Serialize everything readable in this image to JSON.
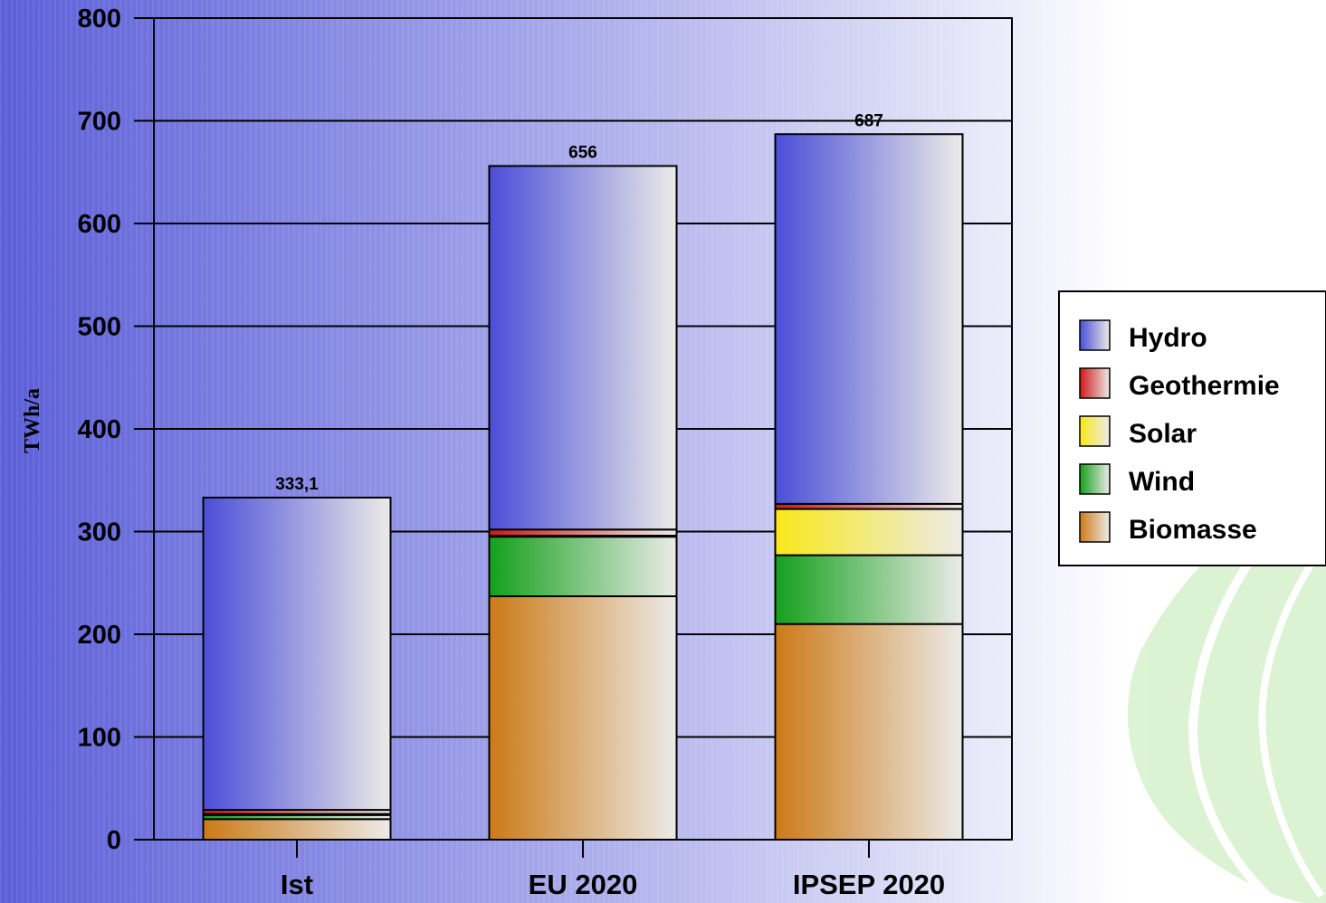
{
  "chart_data": {
    "type": "bar",
    "stacked": true,
    "categories": [
      "Ist",
      "EU 2020",
      "IPSEP 2020"
    ],
    "series": [
      {
        "name": "Biomasse",
        "values": [
          20,
          237,
          210
        ],
        "color": "#cc7a18"
      },
      {
        "name": "Wind",
        "values": [
          4,
          58,
          67
        ],
        "color": "#14a01c"
      },
      {
        "name": "Solar",
        "values": [
          1,
          1,
          45
        ],
        "color": "#f8e81a"
      },
      {
        "name": "Geothermie",
        "values": [
          4,
          6,
          5
        ],
        "color": "#d01818"
      },
      {
        "name": "Hydro",
        "values": [
          304.1,
          354,
          360
        ],
        "color": "#4a4ed8"
      }
    ],
    "totals": [
      "333,1",
      "656",
      "687"
    ],
    "ylabel": "TWh/a",
    "ylim": [
      0,
      800
    ],
    "yticks": [
      "0",
      "100",
      "200",
      "300",
      "400",
      "500",
      "600",
      "700",
      "800"
    ],
    "grid": true,
    "legend_position": "right",
    "legend_order": [
      "Hydro",
      "Geothermie",
      "Solar",
      "Wind",
      "Biomasse"
    ]
  }
}
